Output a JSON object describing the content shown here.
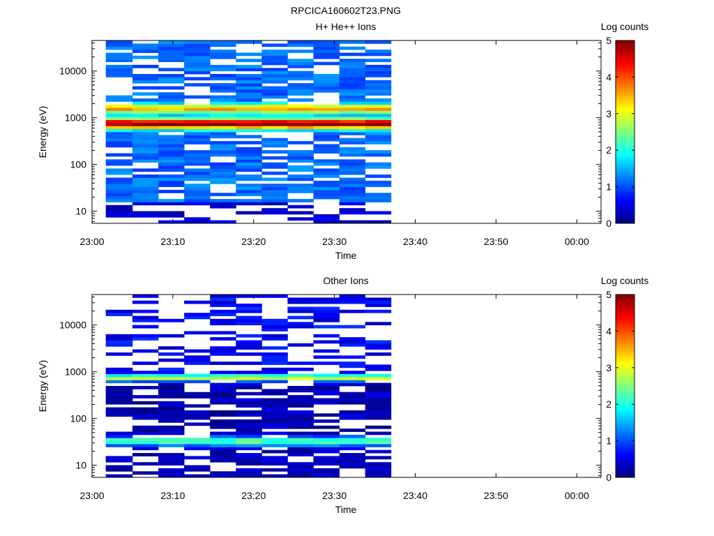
{
  "figure_title": "RPCICA160602T23.PNG",
  "colors": {
    "axis": "#000000",
    "background": "#ffffff"
  },
  "chart_data": [
    {
      "type": "heatmap",
      "title": "H+ He++ Ions",
      "xlabel": "Time",
      "ylabel": "Energy (eV)",
      "x_ticks": [
        "23:00",
        "23:10",
        "23:20",
        "23:30",
        "23:40",
        "23:50",
        "00:00"
      ],
      "xlim_minutes": [
        0,
        63
      ],
      "y_scale": "log",
      "ylim": [
        5.5,
        45000
      ],
      "y_ticks": [
        10,
        100,
        1000,
        10000
      ],
      "y_tick_labels": [
        "10",
        "100",
        "1000",
        "10000"
      ],
      "colorbar": {
        "label": "Log counts",
        "min": 0,
        "max": 5,
        "ticks": [
          "0",
          "1",
          "2",
          "3",
          "4",
          "5"
        ]
      },
      "time_columns": [
        {
          "start": "23:01.7",
          "end": "23:05.0"
        },
        {
          "start": "23:05.0",
          "end": "23:08.2"
        },
        {
          "start": "23:08.2",
          "end": "23:11.4"
        },
        {
          "start": "23:11.4",
          "end": "23:14.6"
        },
        {
          "start": "23:14.6",
          "end": "23:17.8"
        },
        {
          "start": "23:17.8",
          "end": "23:21.0"
        },
        {
          "start": "23:21.0",
          "end": "23:24.2"
        },
        {
          "start": "23:24.2",
          "end": "23:27.4"
        },
        {
          "start": "23:27.4",
          "end": "23:30.6"
        },
        {
          "start": "23:30.6",
          "end": "23:33.8"
        },
        {
          "start": "23:33.8",
          "end": "23:37.0"
        }
      ],
      "energy_peak_eV": 750,
      "peak_log_counts": 3.9
    },
    {
      "type": "heatmap",
      "title": "Other Ions",
      "xlabel": "Time",
      "ylabel": "Energy (eV)",
      "x_ticks": [
        "23:00",
        "23:10",
        "23:20",
        "23:30",
        "23:40",
        "23:50",
        "00:00"
      ],
      "xlim_minutes": [
        0,
        63
      ],
      "y_scale": "log",
      "ylim": [
        5.5,
        45000
      ],
      "y_ticks": [
        10,
        100,
        1000,
        10000
      ],
      "y_tick_labels": [
        "10",
        "100",
        "1000",
        "10000"
      ],
      "colorbar": {
        "label": "Log counts",
        "min": 0,
        "max": 5,
        "ticks": [
          "0",
          "1",
          "2",
          "3",
          "4",
          "5"
        ]
      },
      "time_columns": [
        {
          "start": "23:01.7",
          "end": "23:05.0"
        },
        {
          "start": "23:05.0",
          "end": "23:08.2"
        },
        {
          "start": "23:08.2",
          "end": "23:11.4"
        },
        {
          "start": "23:11.4",
          "end": "23:14.6"
        },
        {
          "start": "23:14.6",
          "end": "23:17.8"
        },
        {
          "start": "23:17.8",
          "end": "23:21.0"
        },
        {
          "start": "23:21.0",
          "end": "23:24.2"
        },
        {
          "start": "23:24.2",
          "end": "23:27.4"
        },
        {
          "start": "23:27.4",
          "end": "23:30.6"
        },
        {
          "start": "23:30.6",
          "end": "23:33.8"
        },
        {
          "start": "23:33.8",
          "end": "23:37.0"
        }
      ],
      "energy_peaks_eV": [
        750,
        33
      ],
      "peak_log_counts": 2.6
    }
  ]
}
